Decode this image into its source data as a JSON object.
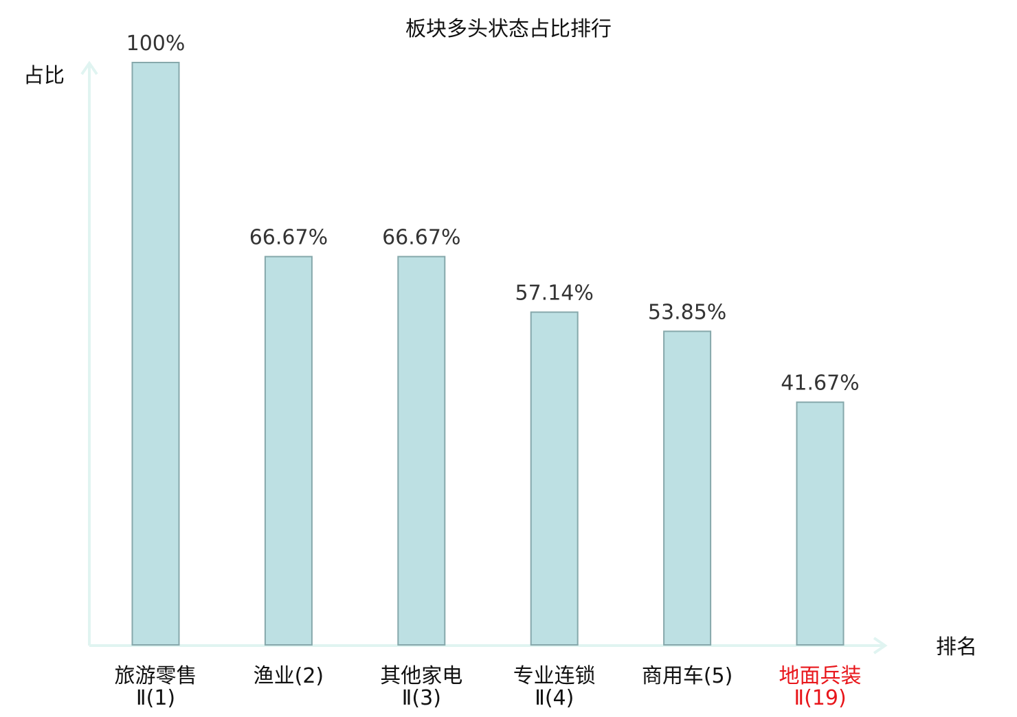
{
  "chart_data": {
    "type": "bar",
    "title": "板块多头状态占比排行",
    "xlabel": "排名",
    "ylabel": "占比",
    "categories": [
      [
        "旅游零售",
        "Ⅱ(1)"
      ],
      [
        "渔业(2)"
      ],
      [
        "其他家电",
        "Ⅱ(3)"
      ],
      [
        "专业连锁",
        "Ⅱ(4)"
      ],
      [
        "商用车(5)"
      ],
      [
        "地面兵装",
        "Ⅱ(19)"
      ]
    ],
    "values": [
      100,
      66.67,
      66.67,
      57.14,
      53.85,
      41.67
    ],
    "value_labels": [
      "100%",
      "66.67%",
      "66.67%",
      "57.14%",
      "53.85%",
      "41.67%"
    ],
    "highlight_index": 5,
    "ylim": [
      0,
      100
    ],
    "grid": false,
    "legend": "none"
  },
  "colors": {
    "bar_fill": "#bde0e3",
    "bar_stroke": "#86a8ab",
    "axis": "#e0f4f1",
    "text": "#111111",
    "value_text": "#333333",
    "highlight": "#e8161b"
  }
}
